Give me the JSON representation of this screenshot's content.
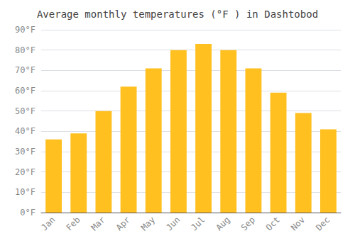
{
  "chart_data": {
    "type": "bar",
    "title": "Average monthly temperatures (°F ) in Dashtobod",
    "categories": [
      "Jan",
      "Feb",
      "Mar",
      "Apr",
      "May",
      "Jun",
      "Jul",
      "Aug",
      "Sep",
      "Oct",
      "Nov",
      "Dec"
    ],
    "values": [
      36,
      39,
      50,
      62,
      71,
      80,
      83,
      80,
      71,
      59,
      49,
      41
    ],
    "color": "#FFC020",
    "ylim": [
      0,
      90
    ],
    "yticks": [
      {
        "value": 0,
        "label": "0°F"
      },
      {
        "value": 10,
        "label": "10°F"
      },
      {
        "value": 20,
        "label": "20°F"
      },
      {
        "value": 30,
        "label": "30°F"
      },
      {
        "value": 40,
        "label": "40°F"
      },
      {
        "value": 50,
        "label": "50°F"
      },
      {
        "value": 60,
        "label": "60°F"
      },
      {
        "value": 70,
        "label": "70°F"
      },
      {
        "value": 80,
        "label": "80°F"
      },
      {
        "value": 90,
        "label": "90°F"
      }
    ],
    "grid": true
  }
}
